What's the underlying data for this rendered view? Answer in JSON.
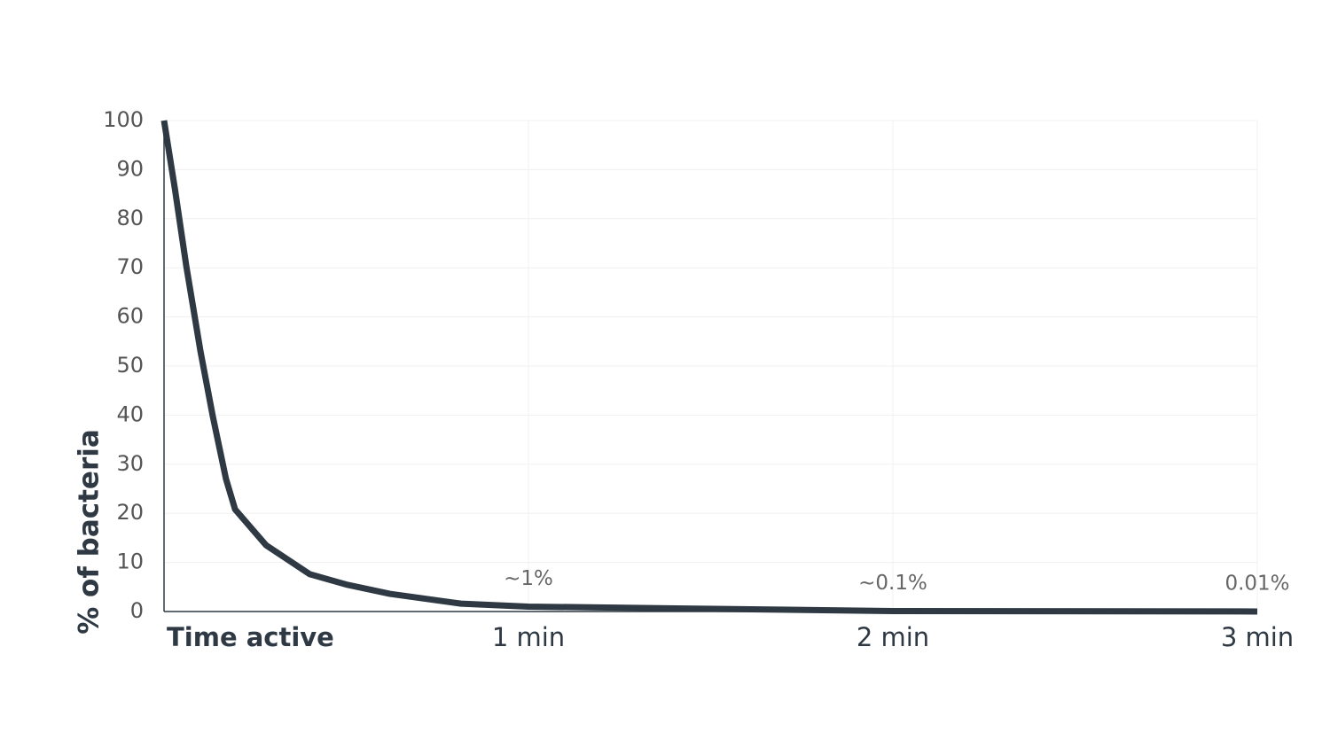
{
  "chart_data": {
    "type": "line",
    "x_label": "Time active",
    "y_label": "% of bacteria",
    "series": [
      {
        "color": "#2e3944",
        "x": [
          0,
          0.03,
          0.061,
          0.1,
          0.134,
          0.17,
          0.195,
          0.28,
          0.4,
          0.5,
          0.62,
          0.815,
          1,
          2,
          3
        ],
        "values": [
          100,
          86,
          70.4,
          53,
          39.7,
          27,
          20.8,
          13.5,
          7.6,
          5.5,
          3.6,
          1.6,
          1,
          0.1,
          0.01
        ]
      }
    ],
    "annotations": [
      {
        "x": 1,
        "y": 1,
        "text": "~1%"
      },
      {
        "x": 2,
        "y": 0.1,
        "text": "~0.1%"
      },
      {
        "x": 3,
        "y": 0.01,
        "text": "0.01%"
      }
    ],
    "xlim": [
      0,
      3
    ],
    "xticks": [
      {
        "value": 1,
        "label": "1 min"
      },
      {
        "value": 2,
        "label": "2 min"
      },
      {
        "value": 3,
        "label": "3 min"
      }
    ],
    "ylim": [
      0,
      100
    ],
    "yticks": [
      0,
      10,
      20,
      30,
      40,
      50,
      60,
      70,
      80,
      90,
      100
    ],
    "grid": true
  }
}
